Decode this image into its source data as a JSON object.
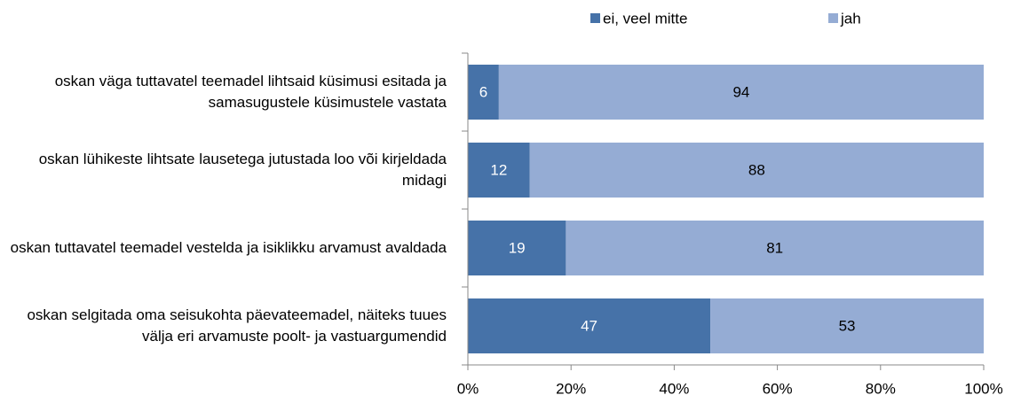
{
  "chart_data": {
    "type": "stacked-barh",
    "categories": [
      "oskan väga tuttavatel teemadel lihtsaid küsimusi esitada ja samasugustele küsimustele vastata",
      "oskan lühikeste lihtsate lausetega jutustada loo või kirjeldada midagi",
      "oskan tuttavatel teemadel vestelda ja isiklikku arvamust avaldada",
      "oskan selgitada oma seisukohta päevateemadel, näiteks tuues välja eri arvamuste poolt- ja vastuargumendid"
    ],
    "series": [
      {
        "name": "ei, veel mitte",
        "color": "#4672a8",
        "label_color": "#ffffff",
        "values": [
          6,
          12,
          19,
          47
        ]
      },
      {
        "name": "jah",
        "color": "#95acd4",
        "label_color": "#000000",
        "values": [
          94,
          88,
          81,
          53
        ]
      }
    ],
    "xlim": [
      0,
      100
    ],
    "xticks": [
      {
        "value": 0,
        "label": "0%"
      },
      {
        "value": 20,
        "label": "20%"
      },
      {
        "value": 40,
        "label": "40%"
      },
      {
        "value": 60,
        "label": "60%"
      },
      {
        "value": 80,
        "label": "80%"
      },
      {
        "value": 100,
        "label": "100%"
      }
    ],
    "legend": "top"
  }
}
